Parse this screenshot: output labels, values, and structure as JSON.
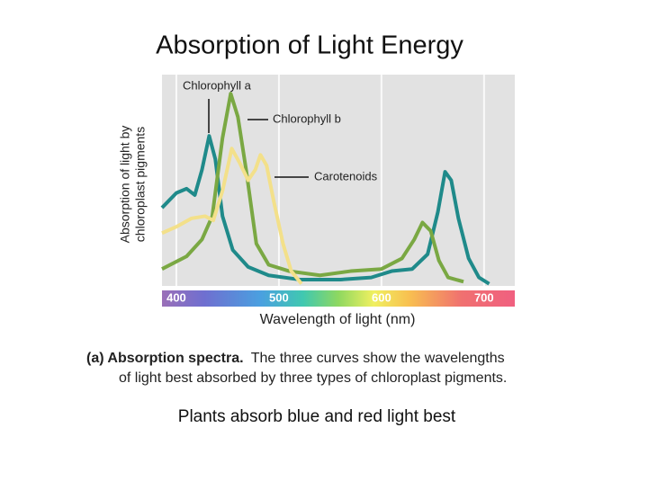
{
  "title": "Absorption of Light Energy",
  "footer": "Plants absorb blue and red light best",
  "chart_data": {
    "type": "line",
    "x_label": "Wavelength of light (nm)",
    "y_label": [
      "Absorption of light by",
      "chloroplast pigments"
    ],
    "annotations": [
      "Chlorophyll a",
      "Chlorophyll b",
      "Carotenoids"
    ],
    "caption": {
      "lead": "(a) Absorption spectra.",
      "lines": [
        "The three curves show the wavelengths",
        "of light best absorbed by three types of chloroplast pigments."
      ]
    },
    "xlim": [
      386,
      730
    ],
    "ylim": [
      0,
      100
    ],
    "xticks": [
      400,
      500,
      600,
      700
    ],
    "grid": true,
    "series": [
      {
        "name": "Chlorophyll a",
        "color": "#1f8a8a",
        "x": [
          386,
          400,
          410,
          418,
          425,
          432,
          438,
          445,
          455,
          470,
          490,
          520,
          560,
          590,
          610,
          630,
          645,
          655,
          662,
          668,
          675,
          685,
          695,
          705
        ],
        "values": [
          37,
          44,
          46,
          43,
          55,
          71,
          60,
          33,
          17,
          9,
          5,
          3,
          3,
          4,
          7,
          8,
          15,
          35,
          54,
          50,
          32,
          13,
          4,
          1
        ]
      },
      {
        "name": "Chlorophyll b",
        "color": "#7aa843",
        "x": [
          386,
          410,
          425,
          435,
          445,
          453,
          460,
          468,
          478,
          490,
          510,
          540,
          570,
          600,
          620,
          632,
          640,
          648,
          656,
          665,
          680
        ],
        "values": [
          8,
          14,
          22,
          33,
          70,
          91,
          80,
          55,
          20,
          10,
          7,
          5,
          7,
          8,
          13,
          22,
          30,
          26,
          12,
          4,
          2
        ]
      },
      {
        "name": "Carotenoids",
        "color": "#f3e08a",
        "x": [
          386,
          400,
          415,
          428,
          436,
          445,
          454,
          462,
          470,
          477,
          482,
          488,
          495,
          504,
          512,
          522
        ],
        "values": [
          25,
          28,
          32,
          33,
          31,
          45,
          65,
          58,
          50,
          55,
          62,
          57,
          40,
          20,
          7,
          1
        ]
      }
    ]
  }
}
